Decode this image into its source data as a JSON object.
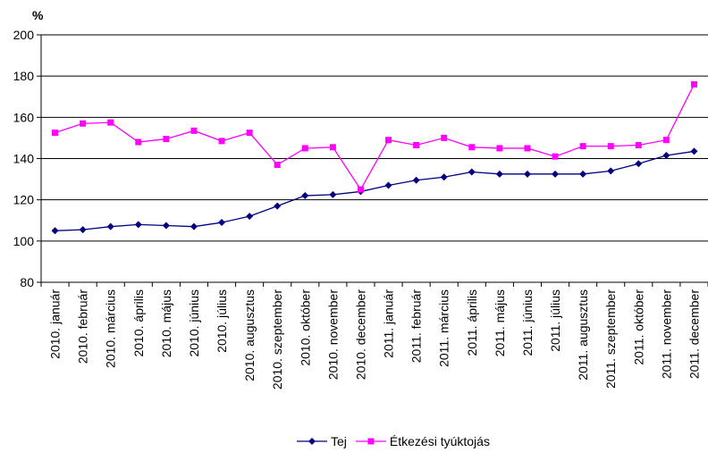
{
  "chart_data": {
    "type": "line",
    "title": "",
    "unit_label": "%",
    "ylim": [
      80,
      200
    ],
    "yticks": [
      80,
      100,
      120,
      140,
      160,
      180,
      200
    ],
    "grid": true,
    "legend_position": "bottom",
    "categories": [
      "2010. január",
      "2010. február",
      "2010. március",
      "2010. április",
      "2010. május",
      "2010. június",
      "2010. július",
      "2010. augusztus",
      "2010. szeptember",
      "2010. október",
      "2010. november",
      "2010. december",
      "2011. január",
      "2011. február",
      "2011. március",
      "2011. április",
      "2011. május",
      "2011. június",
      "2011. július",
      "2011. augusztus",
      "2011. szeptember",
      "2011. október",
      "2011. november",
      "2011. december"
    ],
    "series": [
      {
        "name": "Tej",
        "color": "#000080",
        "marker": "diamond",
        "values": [
          105,
          105.5,
          107,
          108,
          107.5,
          107,
          109,
          112,
          117,
          122,
          122.5,
          124,
          127,
          129.5,
          131,
          133.5,
          132.5,
          132.5,
          132.5,
          132.5,
          134,
          137.5,
          141.5,
          143.5
        ]
      },
      {
        "name": "Étkezési tyúktojás",
        "color": "#FF00FF",
        "marker": "square",
        "values": [
          152.5,
          157,
          157.5,
          148,
          149.5,
          153.5,
          148.5,
          152.5,
          137,
          145,
          145.5,
          125,
          149,
          146.5,
          150,
          145.5,
          145,
          145,
          141,
          146,
          146,
          146.5,
          149,
          176
        ]
      }
    ]
  }
}
